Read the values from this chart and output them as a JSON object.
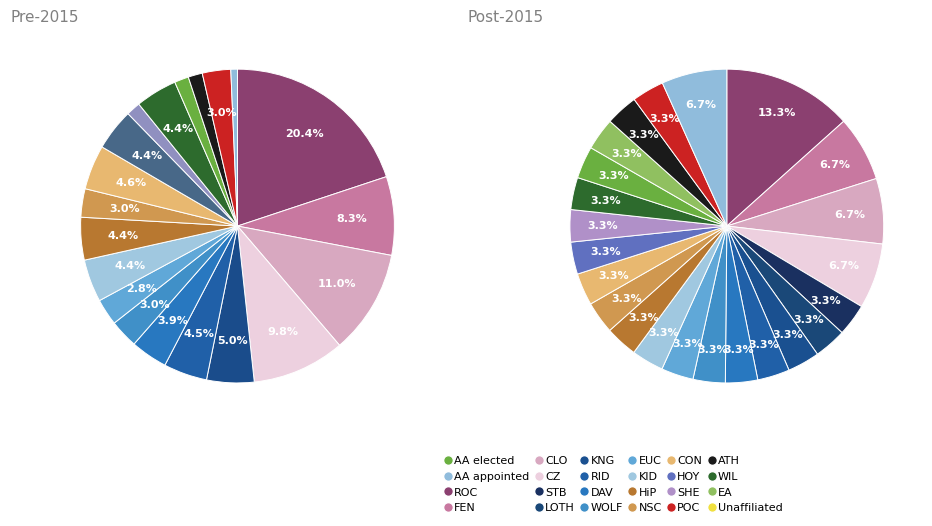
{
  "pre2015": {
    "title": "Pre-2015",
    "slices": [
      {
        "label": "ROC",
        "value": 20.4,
        "color": "#8B4070"
      },
      {
        "label": "FEN",
        "value": 8.3,
        "color": "#C878A0"
      },
      {
        "label": "CLO",
        "value": 11.0,
        "color": "#D8A8C0"
      },
      {
        "label": "CZ",
        "value": 9.8,
        "color": "#EDD0DF"
      },
      {
        "label": "KNG",
        "value": 5.0,
        "color": "#1A4C8B"
      },
      {
        "label": "RID",
        "value": 4.6,
        "color": "#2060A8"
      },
      {
        "label": "DAV",
        "value": 3.9,
        "color": "#2878C0"
      },
      {
        "label": "WOLF",
        "value": 3.0,
        "color": "#4090C8"
      },
      {
        "label": "EUC",
        "value": 2.8,
        "color": "#60A8D8"
      },
      {
        "label": "KID",
        "value": 4.5,
        "color": "#A0C8E0"
      },
      {
        "label": "HiP",
        "value": 4.5,
        "color": "#B87830"
      },
      {
        "label": "NSC",
        "value": 3.0,
        "color": "#D09850"
      },
      {
        "label": "CON",
        "value": 4.7,
        "color": "#E8B870"
      },
      {
        "label": "HOY",
        "value": 4.4,
        "color": "#486888"
      },
      {
        "label": "SHE",
        "value": 1.5,
        "color": "#9090C0"
      },
      {
        "label": "WIL",
        "value": 4.4,
        "color": "#2D6B2D"
      },
      {
        "label": "AA elected",
        "value": 1.5,
        "color": "#6AB040"
      },
      {
        "label": "ATH",
        "value": 1.5,
        "color": "#1A1A1A"
      },
      {
        "label": "POC",
        "value": 3.0,
        "color": "#CC2222"
      },
      {
        "label": "AA appointed",
        "value": 0.7,
        "color": "#90BCDC"
      }
    ]
  },
  "post2015": {
    "title": "Post-2015",
    "slices": [
      {
        "label": "ROC",
        "value": 13.3,
        "color": "#8B4070"
      },
      {
        "label": "FEN",
        "value": 6.7,
        "color": "#C878A0"
      },
      {
        "label": "CLO",
        "value": 6.7,
        "color": "#D8A8C0"
      },
      {
        "label": "CZ",
        "value": 6.7,
        "color": "#EDD0DF"
      },
      {
        "label": "STB",
        "value": 3.3,
        "color": "#1A3060"
      },
      {
        "label": "LOTH",
        "value": 3.3,
        "color": "#1A4878"
      },
      {
        "label": "KNG",
        "value": 3.3,
        "color": "#1A5090"
      },
      {
        "label": "RID",
        "value": 3.3,
        "color": "#2060A8"
      },
      {
        "label": "DAV",
        "value": 3.3,
        "color": "#2878C0"
      },
      {
        "label": "WOLF",
        "value": 3.3,
        "color": "#4090C8"
      },
      {
        "label": "EUC",
        "value": 3.3,
        "color": "#60A8D8"
      },
      {
        "label": "KID",
        "value": 3.3,
        "color": "#A0C8E0"
      },
      {
        "label": "HiP",
        "value": 3.3,
        "color": "#B87830"
      },
      {
        "label": "NSC",
        "value": 3.3,
        "color": "#D09850"
      },
      {
        "label": "CON",
        "value": 3.3,
        "color": "#E8B870"
      },
      {
        "label": "HOY",
        "value": 3.3,
        "color": "#6070C0"
      },
      {
        "label": "SHE",
        "value": 3.3,
        "color": "#B090C8"
      },
      {
        "label": "WIL",
        "value": 3.3,
        "color": "#2D6B2D"
      },
      {
        "label": "AA elected",
        "value": 3.3,
        "color": "#6AB040"
      },
      {
        "label": "EA",
        "value": 3.3,
        "color": "#90C060"
      },
      {
        "label": "ATH",
        "value": 3.3,
        "color": "#1A1A1A"
      },
      {
        "label": "POC",
        "value": 3.3,
        "color": "#CC2222"
      },
      {
        "label": "AA appointed",
        "value": 6.7,
        "color": "#90BCDC"
      }
    ]
  },
  "legend_rows": [
    [
      [
        "AA elected",
        "#6AB040"
      ],
      [
        "AA appointed",
        "#90BCDC"
      ]
    ],
    [
      [
        "ROC",
        "#8B4070"
      ],
      [
        "FEN",
        "#C878A0"
      ],
      [
        "CLO",
        "#D8A8C0"
      ],
      [
        "CZ",
        "#EDD0DF"
      ],
      [
        "STB",
        "#1A3060"
      ],
      [
        "LOTH",
        "#1A4878"
      ]
    ],
    [
      [
        "KNG",
        "#1A5090"
      ],
      [
        "RID",
        "#2060A8"
      ],
      [
        "DAV",
        "#2878C0"
      ],
      [
        "WOLF",
        "#4090C8"
      ],
      [
        "EUC",
        "#60A8D8"
      ]
    ],
    [
      [
        "KID",
        "#A0C8E0"
      ],
      [
        "HiP",
        "#B87830"
      ],
      [
        "NSC",
        "#D09850"
      ],
      [
        "CON",
        "#E8B870"
      ],
      [
        "HOY",
        "#6070C0"
      ],
      [
        "SHE",
        "#B090C8"
      ]
    ],
    [
      [
        "POC",
        "#CC2222"
      ],
      [
        "ATH",
        "#1A1A1A"
      ],
      [
        "WIL",
        "#2D6B2D"
      ],
      [
        "EA",
        "#90C060"
      ],
      [
        "Unaffiliated",
        "#F0E040"
      ]
    ]
  ],
  "bg_color": "#ffffff",
  "title_color": "#808080",
  "title_fontsize": 11,
  "label_fontsize": 8,
  "legend_fontsize": 8
}
